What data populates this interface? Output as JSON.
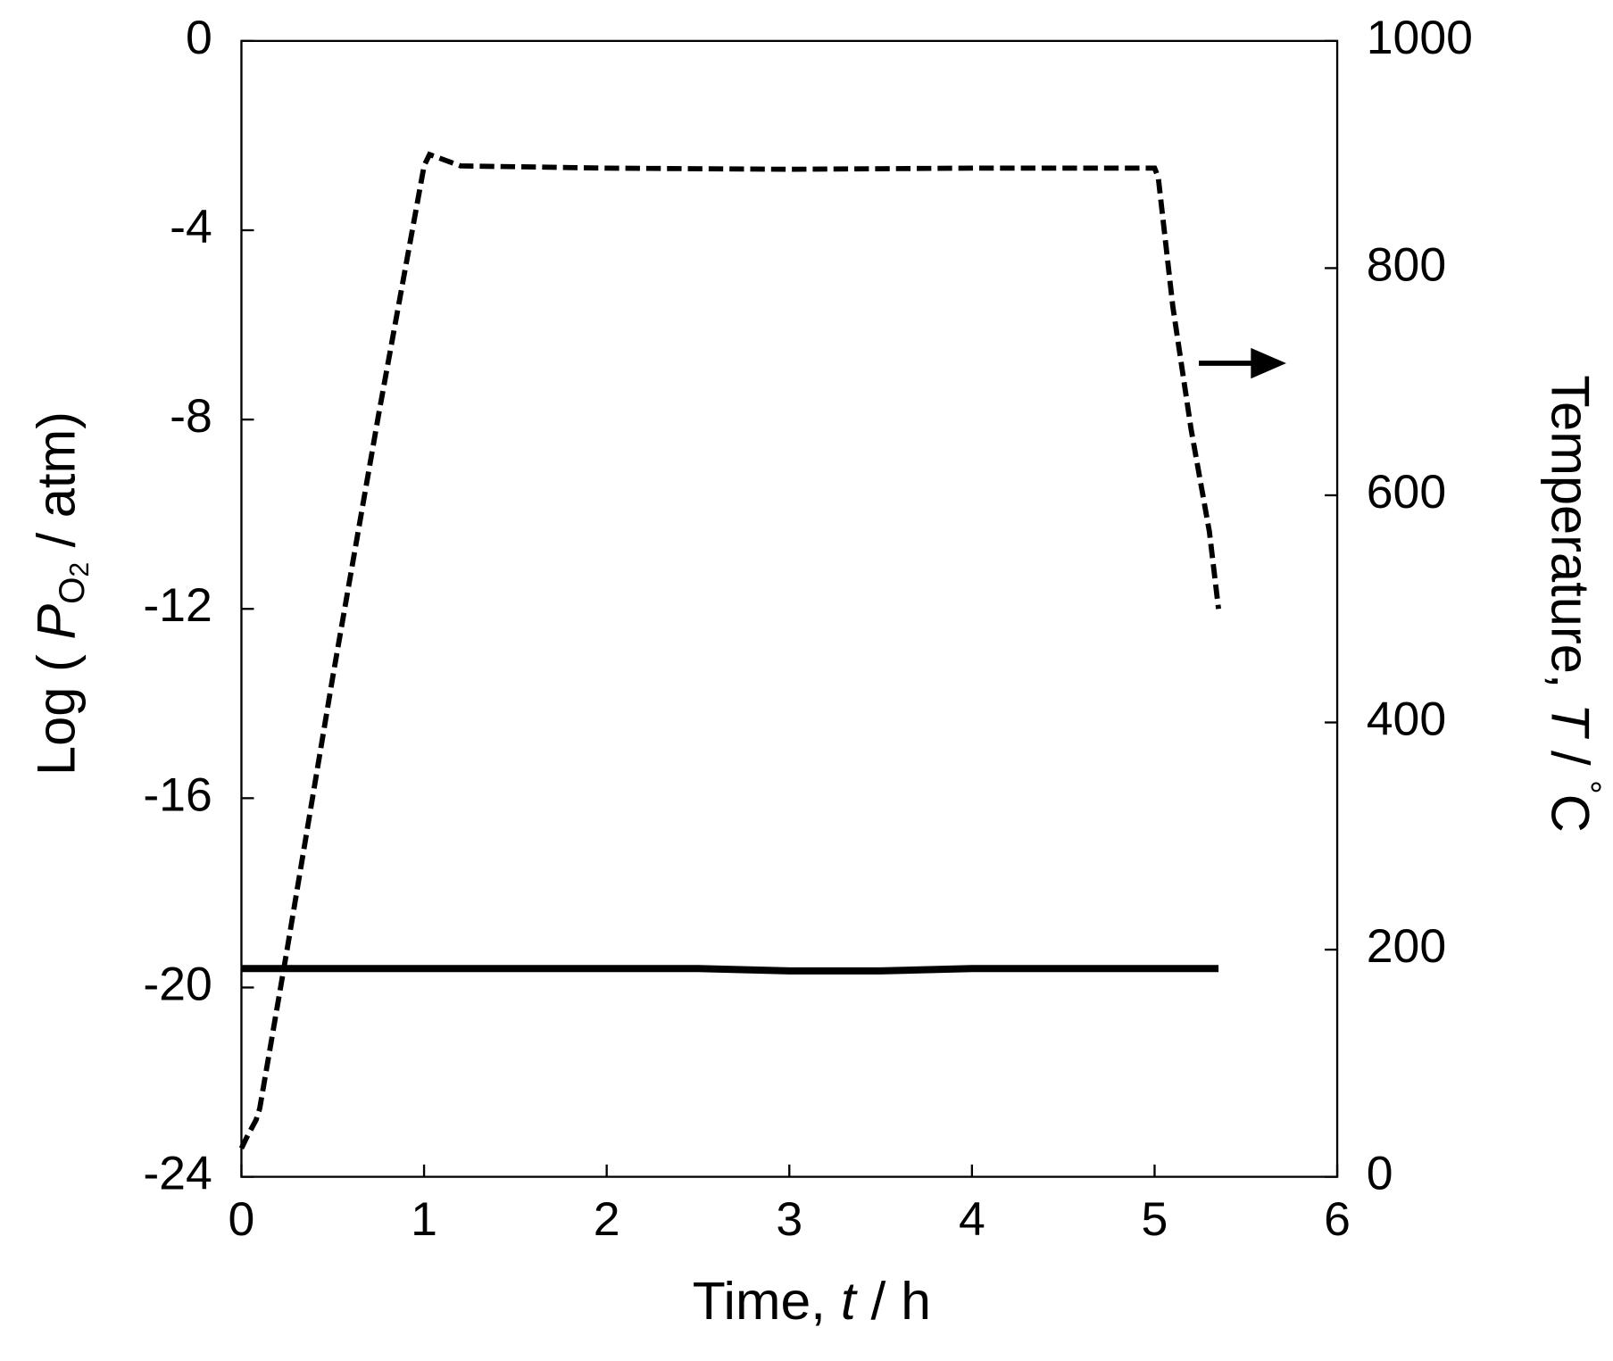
{
  "chart_data": {
    "type": "line",
    "xlabel_parts": [
      "Time, ",
      "t",
      " / h"
    ],
    "ylabel_parts": [
      "Log ( ",
      "P",
      "O",
      "2",
      " / atm)"
    ],
    "y2label_parts": [
      "Temperature, ",
      "T",
      " / ",
      "°",
      "C"
    ],
    "xlim": [
      0,
      6
    ],
    "xticks": [
      0,
      1,
      2,
      3,
      4,
      5,
      6
    ],
    "ylim": [
      -24,
      0
    ],
    "yticks": [
      -24,
      -20,
      -16,
      -12,
      -8,
      -4,
      0
    ],
    "y2lim": [
      0,
      1000
    ],
    "y2ticks": [
      0,
      200,
      400,
      600,
      800,
      1000
    ],
    "grid": false,
    "series": [
      {
        "color": "#000000",
        "style": "solid",
        "axis": "y",
        "x": [
          0,
          0.5,
          1,
          1.5,
          2,
          2.5,
          3,
          3.5,
          4,
          4.5,
          5,
          5.35
        ],
        "values": [
          -19.6,
          -19.6,
          -19.6,
          -19.6,
          -19.6,
          -19.6,
          -19.65,
          -19.65,
          -19.6,
          -19.6,
          -19.6,
          -19.6
        ]
      },
      {
        "color": "#000000",
        "style": "dashed",
        "axis": "y2",
        "x": [
          0,
          0.03,
          0.08,
          0.1,
          0.25,
          0.5,
          0.75,
          1.0,
          1.03,
          1.2,
          2,
          3,
          4,
          5.0,
          5.02,
          5.1,
          5.2,
          5.3,
          5.35
        ],
        "values": [
          25,
          35,
          50,
          60,
          200,
          440,
          670,
          890,
          900,
          890,
          888,
          887,
          888,
          888,
          880,
          766,
          658,
          568,
          500
        ]
      }
    ]
  }
}
